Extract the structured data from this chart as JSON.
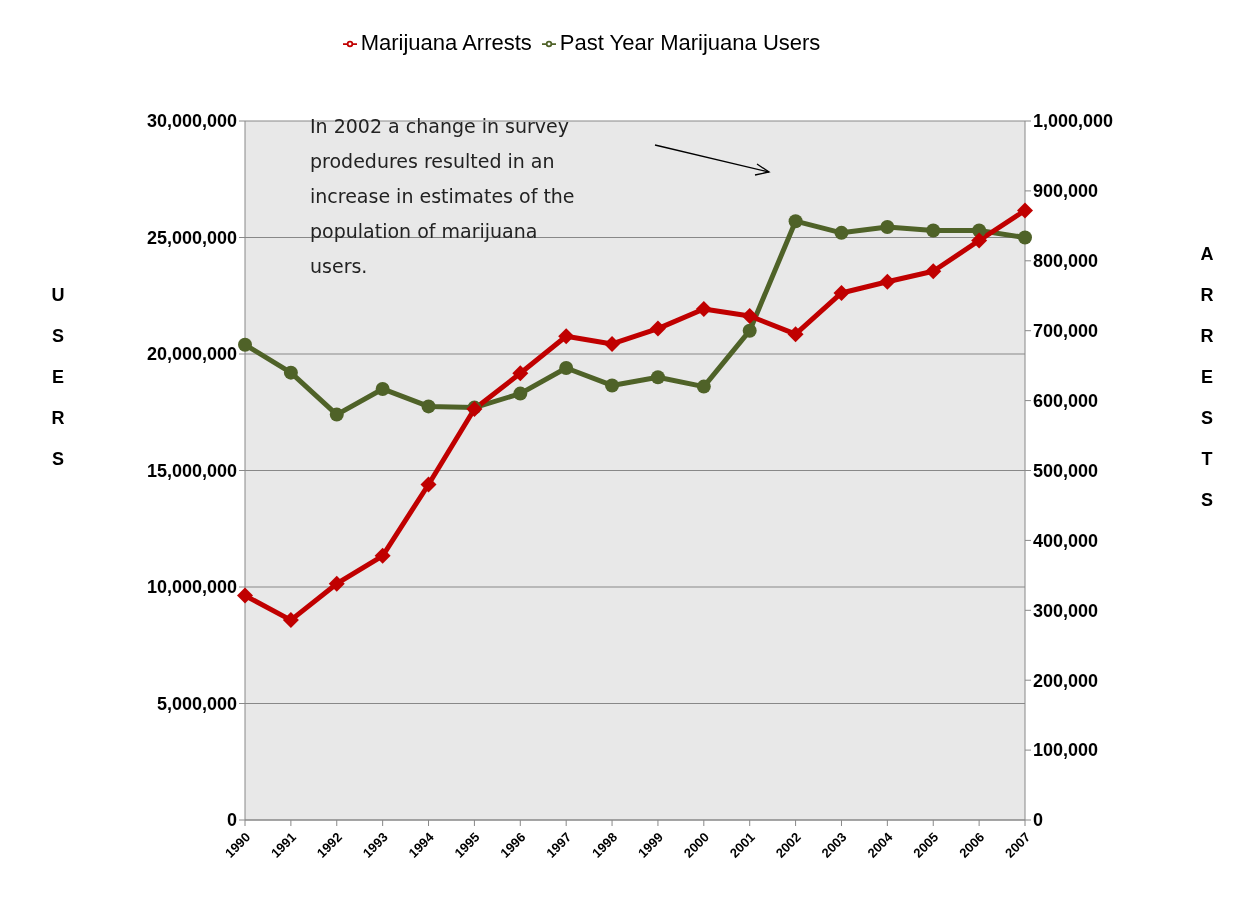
{
  "chart_data": {
    "type": "line",
    "ylabel": "USERS",
    "y2label": "ARRESTS",
    "categories": [
      "1990",
      "1991",
      "1992",
      "1993",
      "1994",
      "1995",
      "1996",
      "1997",
      "1998",
      "1999",
      "2000",
      "2001",
      "2002",
      "2003",
      "2004",
      "2005",
      "2006",
      "2007"
    ],
    "series": [
      {
        "name": "Past Year Marijuana Users",
        "color": "#4f6228",
        "marker": "circle",
        "values": [
          20400000,
          19200000,
          17400000,
          18500000,
          17750000,
          17700000,
          18300000,
          19400000,
          18650000,
          19000000,
          18600000,
          21000000,
          25700000,
          25200000,
          25450000,
          25300000,
          25300000,
          25000000
        ]
      },
      {
        "name": "Marijuana Arrests",
        "color": "#c00000",
        "marker": "diamond",
        "axis": "y2",
        "values": [
          321000,
          286000,
          338000,
          378000,
          480000,
          588000,
          639000,
          692000,
          681000,
          703000,
          731000,
          721000,
          695000,
          754000,
          770000,
          785000,
          829000,
          872000
        ]
      }
    ],
    "ylim": [
      0,
      30000000
    ],
    "yticks": [
      {
        "value": 0,
        "label": "0"
      },
      {
        "value": 5000000,
        "label": "5,000,000"
      },
      {
        "value": 10000000,
        "label": "10,000,000"
      },
      {
        "value": 15000000,
        "label": "15,000,000"
      },
      {
        "value": 20000000,
        "label": "20,000,000"
      },
      {
        "value": 25000000,
        "label": "25,000,000"
      },
      {
        "value": 30000000,
        "label": "30,000,000"
      }
    ],
    "y2lim": [
      0,
      1000000
    ],
    "y2ticks": [
      {
        "value": 0,
        "label": "0"
      },
      {
        "value": 100000,
        "label": "100,000"
      },
      {
        "value": 200000,
        "label": "200,000"
      },
      {
        "value": 300000,
        "label": "300,000"
      },
      {
        "value": 400000,
        "label": "400,000"
      },
      {
        "value": 500000,
        "label": "500,000"
      },
      {
        "value": 600000,
        "label": "600,000"
      },
      {
        "value": 700000,
        "label": "700,000"
      },
      {
        "value": 800000,
        "label": "800,000"
      },
      {
        "value": 900000,
        "label": "900,000"
      },
      {
        "value": 1000000,
        "label": "1,000,000"
      }
    ],
    "annotations": [
      "In 2002 a change in survey\nprodedures resulted in an\nincrease in estimates of the\npopulation of marijuana\nusers."
    ],
    "grid": "y",
    "legend": "top"
  }
}
